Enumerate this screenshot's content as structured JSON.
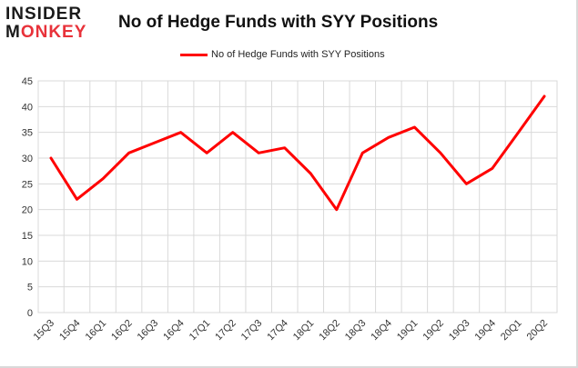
{
  "header": {
    "logo_top": "INSIDER",
    "logo_bottom_prefix": "M",
    "logo_bottom_accent": "ONKEY",
    "title": "No of Hedge Funds with SYY Positions"
  },
  "colors": {
    "series": "#ff0000",
    "accent": "#e8323a",
    "grid": "#d9d9d9"
  },
  "chart_data": {
    "type": "line",
    "title": "No of Hedge Funds with SYY Positions",
    "x": [
      "15Q3",
      "15Q4",
      "16Q1",
      "16Q2",
      "16Q3",
      "16Q4",
      "17Q1",
      "17Q2",
      "17Q3",
      "17Q4",
      "18Q1",
      "18Q2",
      "18Q3",
      "18Q4",
      "19Q1",
      "19Q2",
      "19Q3",
      "19Q4",
      "20Q1",
      "20Q2"
    ],
    "series": [
      {
        "name": "No of Hedge Funds with SYY Positions",
        "values": [
          30,
          22,
          26,
          31,
          33,
          35,
          31,
          35,
          31,
          32,
          27,
          20,
          31,
          34,
          36,
          31,
          25,
          28,
          35,
          42
        ]
      }
    ],
    "ylim": [
      0,
      45
    ],
    "yticks": [
      0,
      5,
      10,
      15,
      20,
      25,
      30,
      35,
      40,
      45
    ],
    "grid": true,
    "legend": "top-center"
  }
}
